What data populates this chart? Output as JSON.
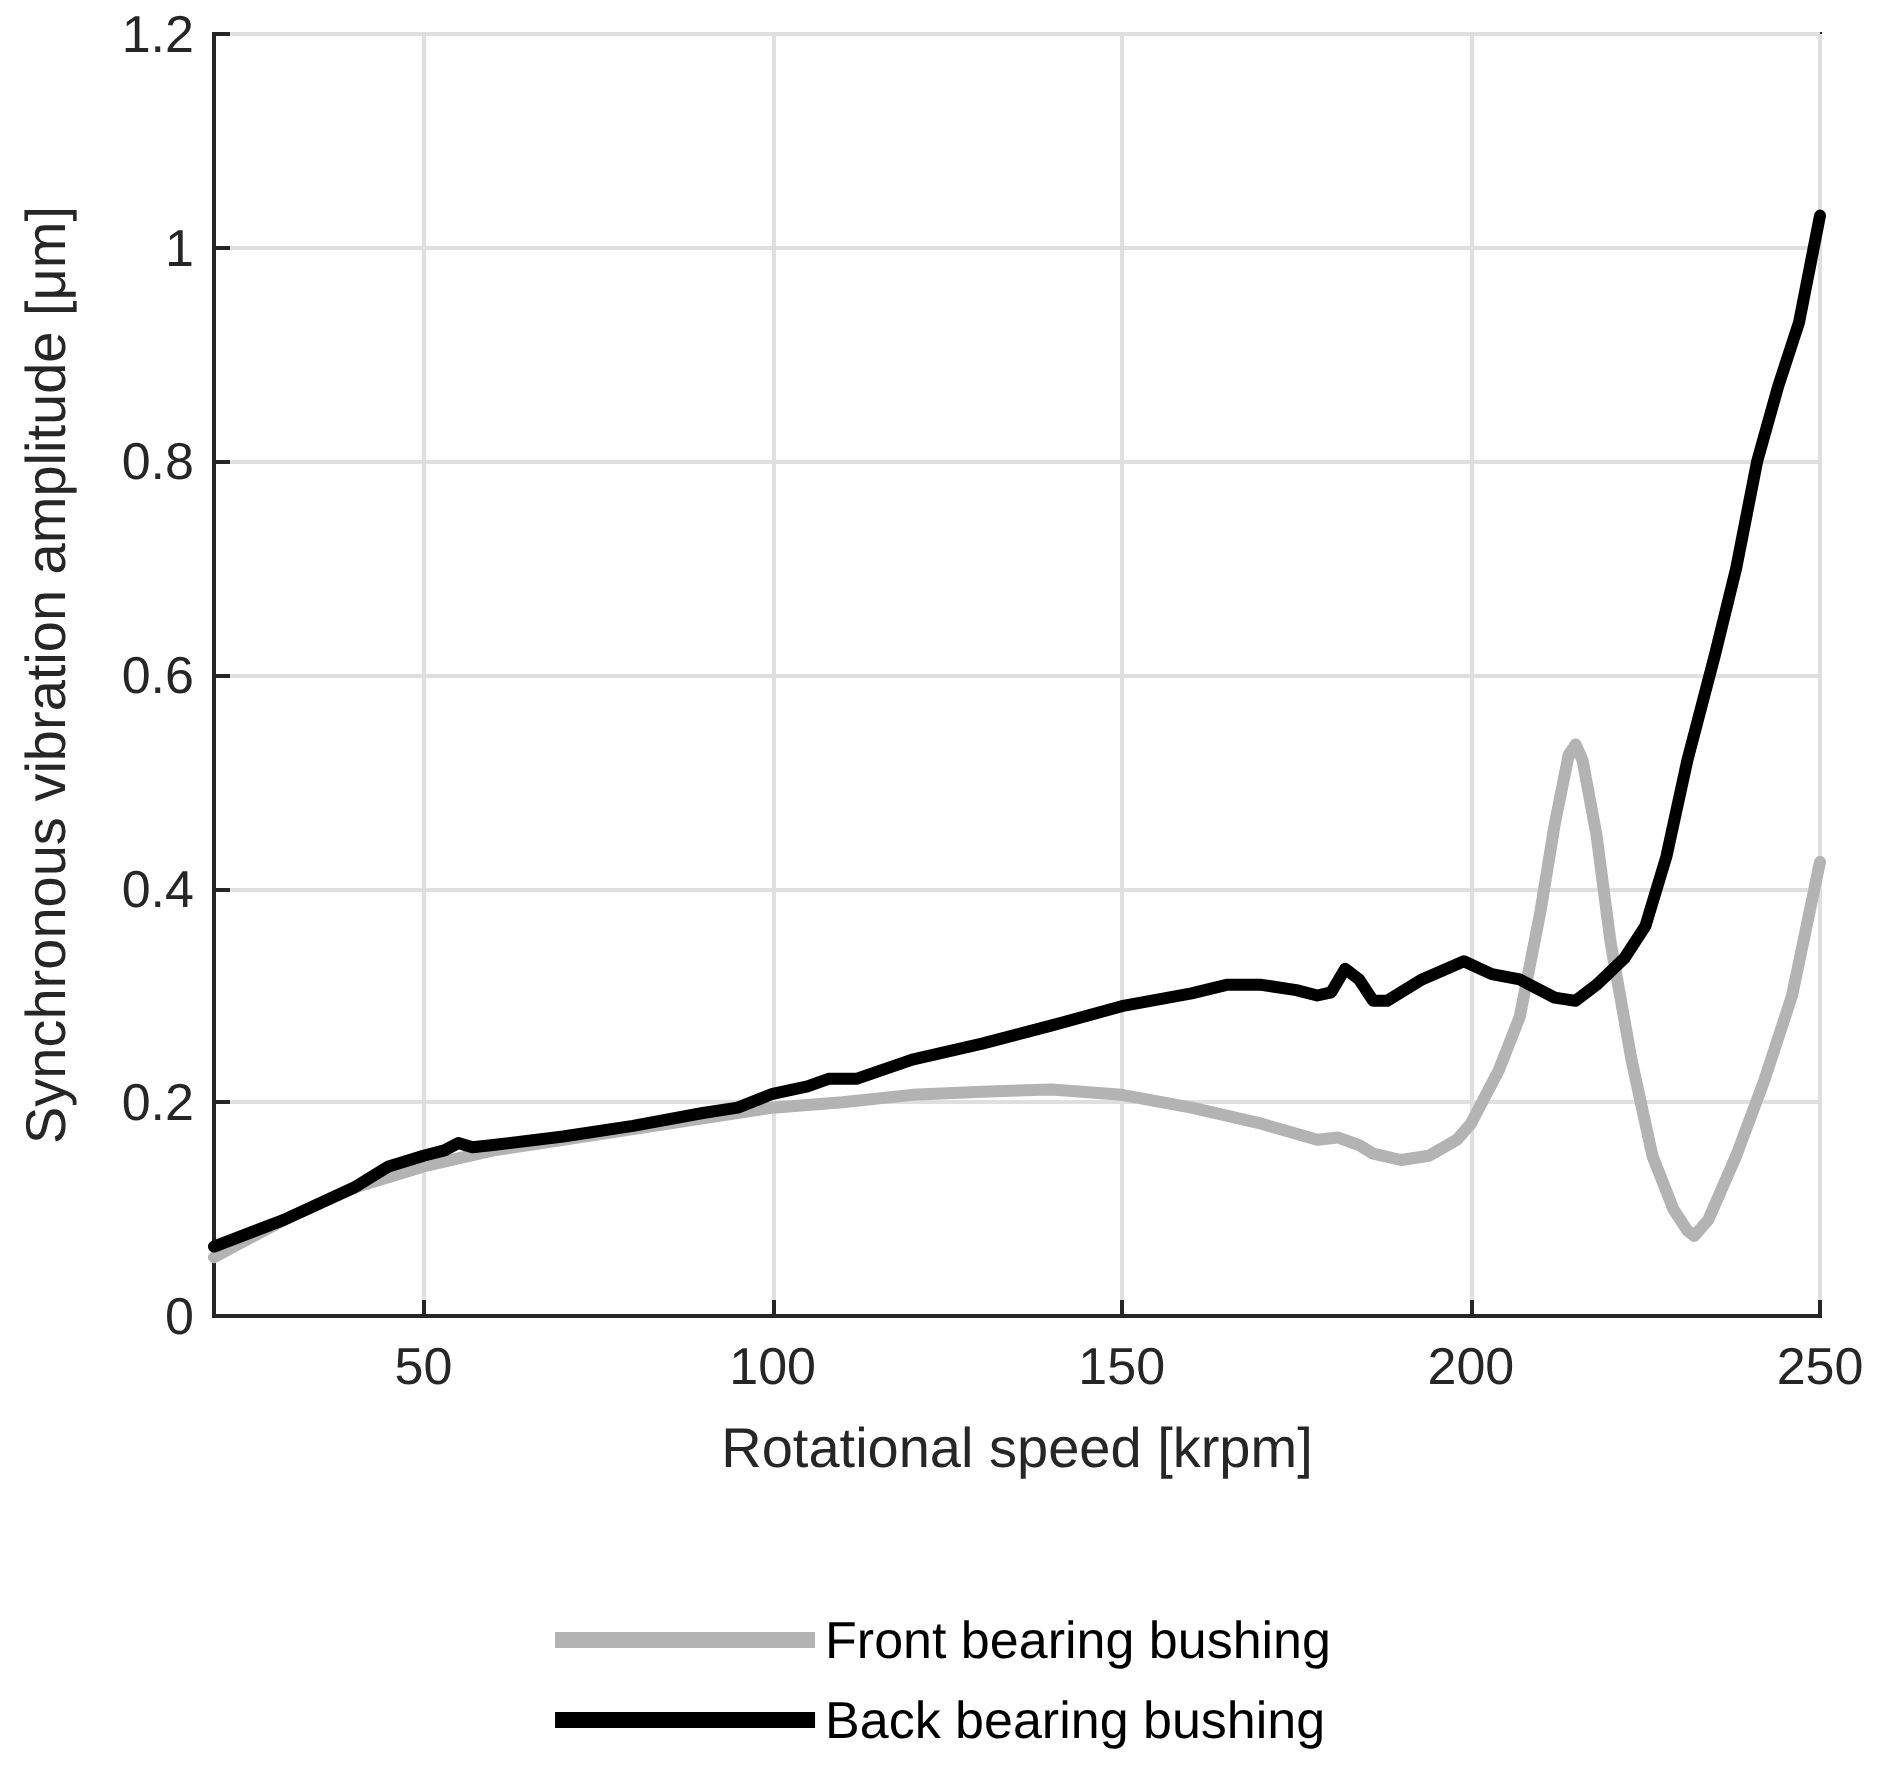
{
  "chart_data": {
    "type": "line",
    "xlabel": "Rotational speed [krpm]",
    "ylabel": "Synchronous vibration amplitude [μm]",
    "xlim": [
      20,
      250
    ],
    "xticks": [
      50,
      100,
      150,
      200,
      250
    ],
    "ylim": [
      0,
      1.2
    ],
    "yticks": [
      0,
      0.2,
      0.4,
      0.6,
      0.8,
      1,
      1.2
    ],
    "grid": true,
    "legend": "bottom",
    "line_style": "solid",
    "marker": "none",
    "series": [
      {
        "name": "Front bearing bushing",
        "color": "#b3b3b3",
        "x": [
          20,
          30,
          40,
          50,
          60,
          70,
          80,
          90,
          100,
          110,
          120,
          130,
          140,
          150,
          160,
          170,
          178,
          181,
          184,
          186,
          190,
          194,
          198,
          200,
          204,
          207,
          210,
          212,
          214,
          215,
          216,
          218,
          220,
          223,
          226,
          229,
          231,
          232,
          234,
          238,
          242,
          246,
          250
        ],
        "values": [
          0.055,
          0.09,
          0.12,
          0.14,
          0.155,
          0.165,
          0.175,
          0.185,
          0.195,
          0.2,
          0.207,
          0.21,
          0.212,
          0.207,
          0.195,
          0.18,
          0.165,
          0.167,
          0.16,
          0.152,
          0.146,
          0.15,
          0.165,
          0.18,
          0.23,
          0.28,
          0.38,
          0.46,
          0.525,
          0.535,
          0.52,
          0.45,
          0.35,
          0.24,
          0.15,
          0.1,
          0.08,
          0.075,
          0.09,
          0.15,
          0.22,
          0.3,
          0.425
        ]
      },
      {
        "name": "Back bearing bushing",
        "color": "#000000",
        "x": [
          20,
          30,
          40,
          45,
          50,
          53,
          55,
          57,
          60,
          70,
          80,
          90,
          95,
          100,
          105,
          108,
          112,
          120,
          130,
          140,
          150,
          160,
          165,
          170,
          175,
          178,
          180,
          182,
          184,
          186,
          188,
          193,
          199,
          203,
          207,
          212,
          215,
          218,
          222,
          225,
          228,
          231,
          235,
          238,
          241,
          244,
          247,
          250
        ],
        "values": [
          0.065,
          0.09,
          0.12,
          0.14,
          0.15,
          0.155,
          0.162,
          0.158,
          0.16,
          0.168,
          0.178,
          0.19,
          0.195,
          0.208,
          0.215,
          0.222,
          0.222,
          0.24,
          0.255,
          0.272,
          0.29,
          0.302,
          0.31,
          0.31,
          0.305,
          0.3,
          0.303,
          0.325,
          0.315,
          0.295,
          0.295,
          0.315,
          0.332,
          0.32,
          0.315,
          0.298,
          0.295,
          0.31,
          0.335,
          0.365,
          0.43,
          0.52,
          0.62,
          0.7,
          0.8,
          0.87,
          0.93,
          1.03
        ]
      }
    ]
  }
}
